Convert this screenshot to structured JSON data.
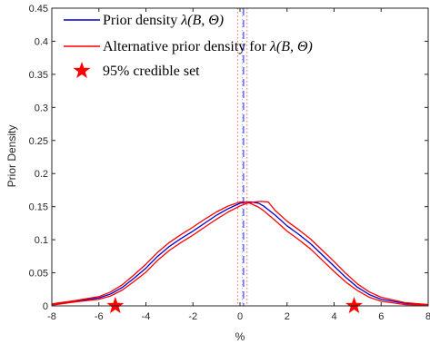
{
  "chart_data": {
    "type": "line",
    "title": "",
    "xlabel": "%",
    "ylabel": "Prior Density",
    "xlim": [
      -8,
      8
    ],
    "ylim": [
      0,
      0.45
    ],
    "xticks": [
      -8,
      -6,
      -4,
      -2,
      0,
      2,
      4,
      6,
      8
    ],
    "xtick_labels": [
      "-8",
      "-6",
      "-4",
      "-2",
      "0",
      "2",
      "4",
      "6",
      "8"
    ],
    "yticks": [
      0,
      0.05,
      0.1,
      0.15,
      0.2,
      0.25,
      0.3,
      0.35,
      0.4,
      0.45
    ],
    "ytick_labels": [
      "0",
      "0.05",
      "0.1",
      "0.15",
      "0.2",
      "0.25",
      "0.3",
      "0.35",
      "0.4",
      "0.45"
    ],
    "grid": false,
    "legend_position": "top-left",
    "series": [
      {
        "name": "Prior density λ(B, Θ)",
        "color": "#0000cc",
        "style": "solid",
        "x": [
          -8,
          -7,
          -6,
          -5.5,
          -5,
          -4.5,
          -4,
          -3.5,
          -3,
          -2.5,
          -2,
          -1.5,
          -1,
          -0.5,
          0,
          0.3,
          0.5,
          0.8,
          1,
          1.5,
          2,
          2.5,
          3,
          3.5,
          4,
          4.5,
          5,
          5.5,
          6,
          7,
          8
        ],
        "y": [
          0.002,
          0.007,
          0.012,
          0.018,
          0.028,
          0.042,
          0.057,
          0.075,
          0.09,
          0.102,
          0.113,
          0.125,
          0.137,
          0.147,
          0.155,
          0.157,
          0.157,
          0.155,
          0.151,
          0.137,
          0.121,
          0.108,
          0.094,
          0.077,
          0.06,
          0.043,
          0.028,
          0.017,
          0.01,
          0.004,
          0.001
        ]
      },
      {
        "name": "Alternative prior density for λ(B, Θ)",
        "color": "#ff0000",
        "style": "solid",
        "x": [
          -8,
          -7,
          -6,
          -5.5,
          -5,
          -4.5,
          -4,
          -3.5,
          -3,
          -2.5,
          -2,
          -1.5,
          -1,
          -0.5,
          0,
          0.3,
          0.5,
          0.8,
          1,
          1.5,
          2,
          2.5,
          3,
          3.5,
          4,
          4.5,
          5,
          5.5,
          6,
          7,
          8
        ],
        "y": [
          0.003,
          0.008,
          0.014,
          0.021,
          0.032,
          0.047,
          0.063,
          0.081,
          0.096,
          0.108,
          0.119,
          0.131,
          0.142,
          0.151,
          0.157,
          0.157,
          0.154,
          0.149,
          0.144,
          0.129,
          0.113,
          0.1,
          0.086,
          0.069,
          0.052,
          0.036,
          0.023,
          0.013,
          0.007,
          0.002,
          0.001
        ]
      },
      {
        "name": "",
        "color": "#ff0000",
        "style": "solid",
        "x": [
          -8,
          -7,
          -6,
          -5.5,
          -5,
          -4.5,
          -4,
          -3.5,
          -3,
          -2.5,
          -2,
          -1.5,
          -1,
          -0.5,
          0,
          0.3,
          0.6,
          0.9,
          1.2,
          1.5,
          2,
          2.5,
          3,
          3.5,
          4,
          4.5,
          5,
          5.5,
          6,
          7,
          8
        ],
        "y": [
          0.001,
          0.006,
          0.01,
          0.015,
          0.024,
          0.037,
          0.051,
          0.069,
          0.084,
          0.096,
          0.107,
          0.119,
          0.131,
          0.142,
          0.151,
          0.155,
          0.157,
          0.158,
          0.157,
          0.144,
          0.128,
          0.115,
          0.101,
          0.084,
          0.067,
          0.049,
          0.033,
          0.021,
          0.013,
          0.005,
          0.002
        ]
      }
    ],
    "vertical_lines": [
      {
        "x": -0.1,
        "color": "#ff6666",
        "style": "dotted"
      },
      {
        "x": 0.1,
        "color": "#aaaaee",
        "style": "dotted"
      },
      {
        "x": 0.3,
        "color": "#ff6666",
        "style": "dotted"
      },
      {
        "x": 0.15,
        "color": "#4444ff",
        "style": "dashed"
      }
    ],
    "credible_set": {
      "name": "95% credible set",
      "color": "#ff0000",
      "x": [
        -5.3,
        4.85
      ],
      "y": [
        0,
        0
      ]
    }
  },
  "legend": {
    "entry1_prefix": "Prior density ",
    "entry1_math": "λ(B, Θ)",
    "entry2_prefix": "Alternative prior density for ",
    "entry2_math": "λ(B, Θ)",
    "entry3": "95% credible set"
  }
}
